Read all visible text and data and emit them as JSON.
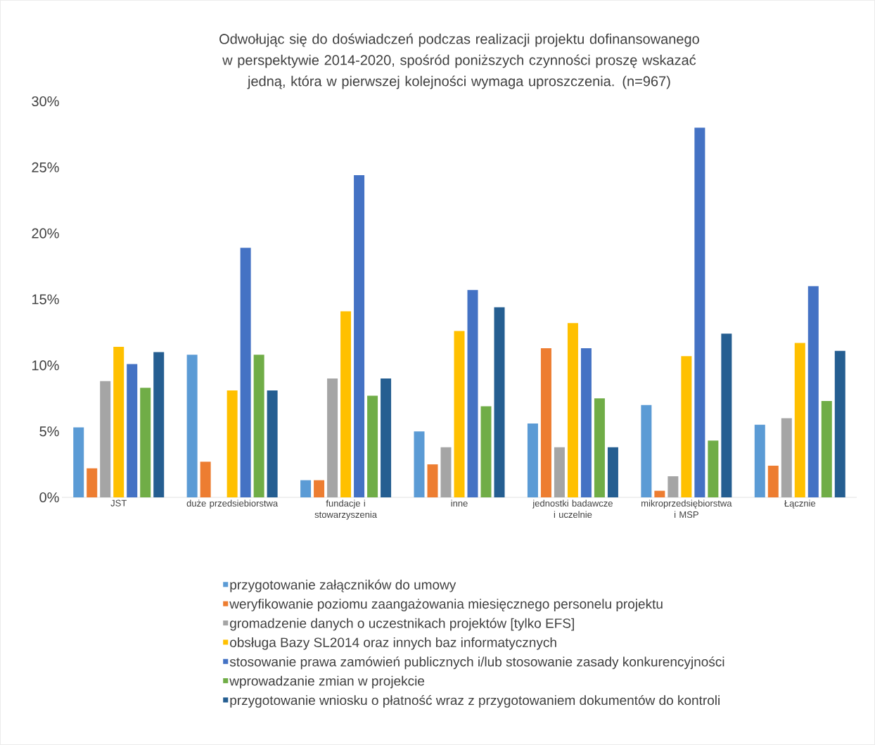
{
  "chart_data": {
    "type": "bar",
    "title": "Odwołując się do doświadczeń podczas realizacji projektu dofinansowanego w perspektywie 2014-2020, spośród poniższych czynności proszę wskazać jedną, która w pierwszej kolejności wymaga uproszczenia. (n=967)",
    "categories": [
      "JST",
      "duże przedsiebiorstwa",
      "fundacje i stowarzyszenia",
      "inne",
      "jednostki badawcze i uczelnie",
      "mikroprzedsiębiorstwa i MSP",
      "Łącznie"
    ],
    "series": [
      {
        "name": "przygotowanie załączników do umowy",
        "color": "#5b9bd5",
        "values": [
          5.3,
          10.8,
          1.3,
          5.0,
          5.6,
          7.0,
          5.5
        ]
      },
      {
        "name": "weryfikowanie poziomu zaangażowania miesięcznego personelu projektu",
        "color": "#ed7d31",
        "values": [
          2.2,
          2.7,
          1.3,
          2.5,
          11.3,
          0.5,
          2.4
        ]
      },
      {
        "name": "gromadzenie danych o uczestnikach projektów [tylko EFS]",
        "color": "#a5a5a5",
        "values": [
          8.8,
          0,
          9.0,
          3.8,
          3.8,
          1.6,
          6.0
        ]
      },
      {
        "name": "obsługa Bazy SL2014 oraz innych baz informatycznych",
        "color": "#ffc000",
        "values": [
          11.4,
          8.1,
          14.1,
          12.6,
          13.2,
          10.7,
          11.7
        ]
      },
      {
        "name": "stosowanie prawa zamówień publicznych i/lub stosowanie zasady konkurencyjności",
        "color": "#4472c4",
        "values": [
          10.1,
          18.9,
          24.4,
          15.7,
          11.3,
          28.0,
          16.0
        ]
      },
      {
        "name": "wprowadzanie zmian w projekcie",
        "color": "#70ad47",
        "values": [
          8.3,
          10.8,
          7.7,
          6.9,
          7.5,
          4.3,
          7.3
        ]
      },
      {
        "name": "przygotowanie wniosku o płatność wraz z przygotowaniem dokumentów do kontroli",
        "color": "#255e91",
        "values": [
          11.0,
          8.1,
          9.0,
          14.4,
          3.8,
          12.4,
          11.1
        ]
      }
    ],
    "ylim": [
      0,
      30
    ],
    "yticks": [
      {
        "value": 0,
        "label": "0%"
      },
      {
        "value": 5,
        "label": "5%"
      },
      {
        "value": 10,
        "label": "10%"
      },
      {
        "value": 15,
        "label": "15%"
      },
      {
        "value": 20,
        "label": "20%"
      },
      {
        "value": 25,
        "label": "25%"
      },
      {
        "value": 30,
        "label": "30%"
      }
    ],
    "legend": "bottom",
    "grid": false
  }
}
